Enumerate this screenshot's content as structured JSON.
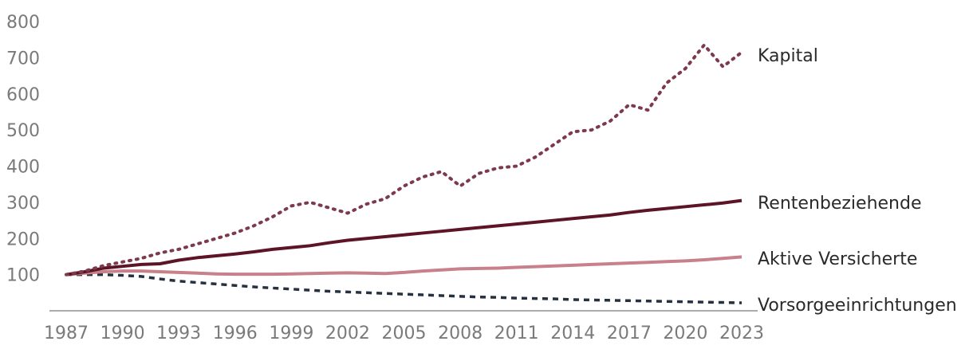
{
  "chart_data": {
    "type": "line",
    "title": "",
    "xlabel": "",
    "ylabel": "",
    "xlim": [
      1987,
      2023
    ],
    "ylim": [
      0,
      800
    ],
    "x_ticks": [
      1987,
      1990,
      1993,
      1996,
      1999,
      2002,
      2005,
      2008,
      2011,
      2014,
      2017,
      2020,
      2023
    ],
    "y_ticks": [
      100,
      200,
      300,
      400,
      500,
      600,
      700,
      800
    ],
    "grid": false,
    "legend": "direct-labels-right",
    "x": [
      1987,
      1988,
      1989,
      1990,
      1991,
      1992,
      1993,
      1994,
      1995,
      1996,
      1997,
      1998,
      1999,
      2000,
      2001,
      2002,
      2003,
      2004,
      2005,
      2006,
      2007,
      2008,
      2009,
      2010,
      2011,
      2012,
      2013,
      2014,
      2015,
      2016,
      2017,
      2018,
      2019,
      2020,
      2021,
      2022,
      2023
    ],
    "series": [
      {
        "name": "Kapital",
        "color": "#7d3a4c",
        "style": "dotted",
        "values": [
          100,
          110,
          125,
          135,
          145,
          160,
          170,
          185,
          200,
          215,
          235,
          260,
          290,
          300,
          285,
          270,
          295,
          310,
          345,
          370,
          385,
          345,
          380,
          395,
          400,
          425,
          460,
          495,
          500,
          525,
          570,
          555,
          630,
          670,
          735,
          675,
          715
        ]
      },
      {
        "name": "Rentenbeziehende",
        "color": "#5c1426",
        "style": "solid",
        "values": [
          100,
          108,
          118,
          123,
          128,
          130,
          140,
          147,
          152,
          157,
          163,
          170,
          175,
          180,
          188,
          195,
          200,
          205,
          210,
          215,
          220,
          225,
          230,
          235,
          240,
          245,
          250,
          255,
          260,
          265,
          272,
          278,
          283,
          288,
          293,
          298,
          305
        ]
      },
      {
        "name": "Aktive Versicherte",
        "color": "#c8808a",
        "style": "solid",
        "values": [
          100,
          104,
          108,
          110,
          110,
          108,
          106,
          104,
          102,
          101,
          101,
          101,
          102,
          103,
          104,
          105,
          104,
          103,
          106,
          110,
          113,
          116,
          117,
          118,
          120,
          122,
          124,
          126,
          128,
          130,
          132,
          134,
          136,
          138,
          141,
          145,
          149
        ]
      },
      {
        "name": "Vorsorgeeinrichtungen",
        "color": "#26313f",
        "style": "dashed",
        "values": [
          100,
          100,
          100,
          98,
          95,
          88,
          82,
          78,
          74,
          70,
          66,
          63,
          60,
          57,
          54,
          52,
          50,
          48,
          46,
          44,
          42,
          40,
          38,
          37,
          35,
          34,
          33,
          31,
          30,
          29,
          28,
          27,
          26,
          25,
          24,
          23,
          22
        ]
      }
    ]
  }
}
